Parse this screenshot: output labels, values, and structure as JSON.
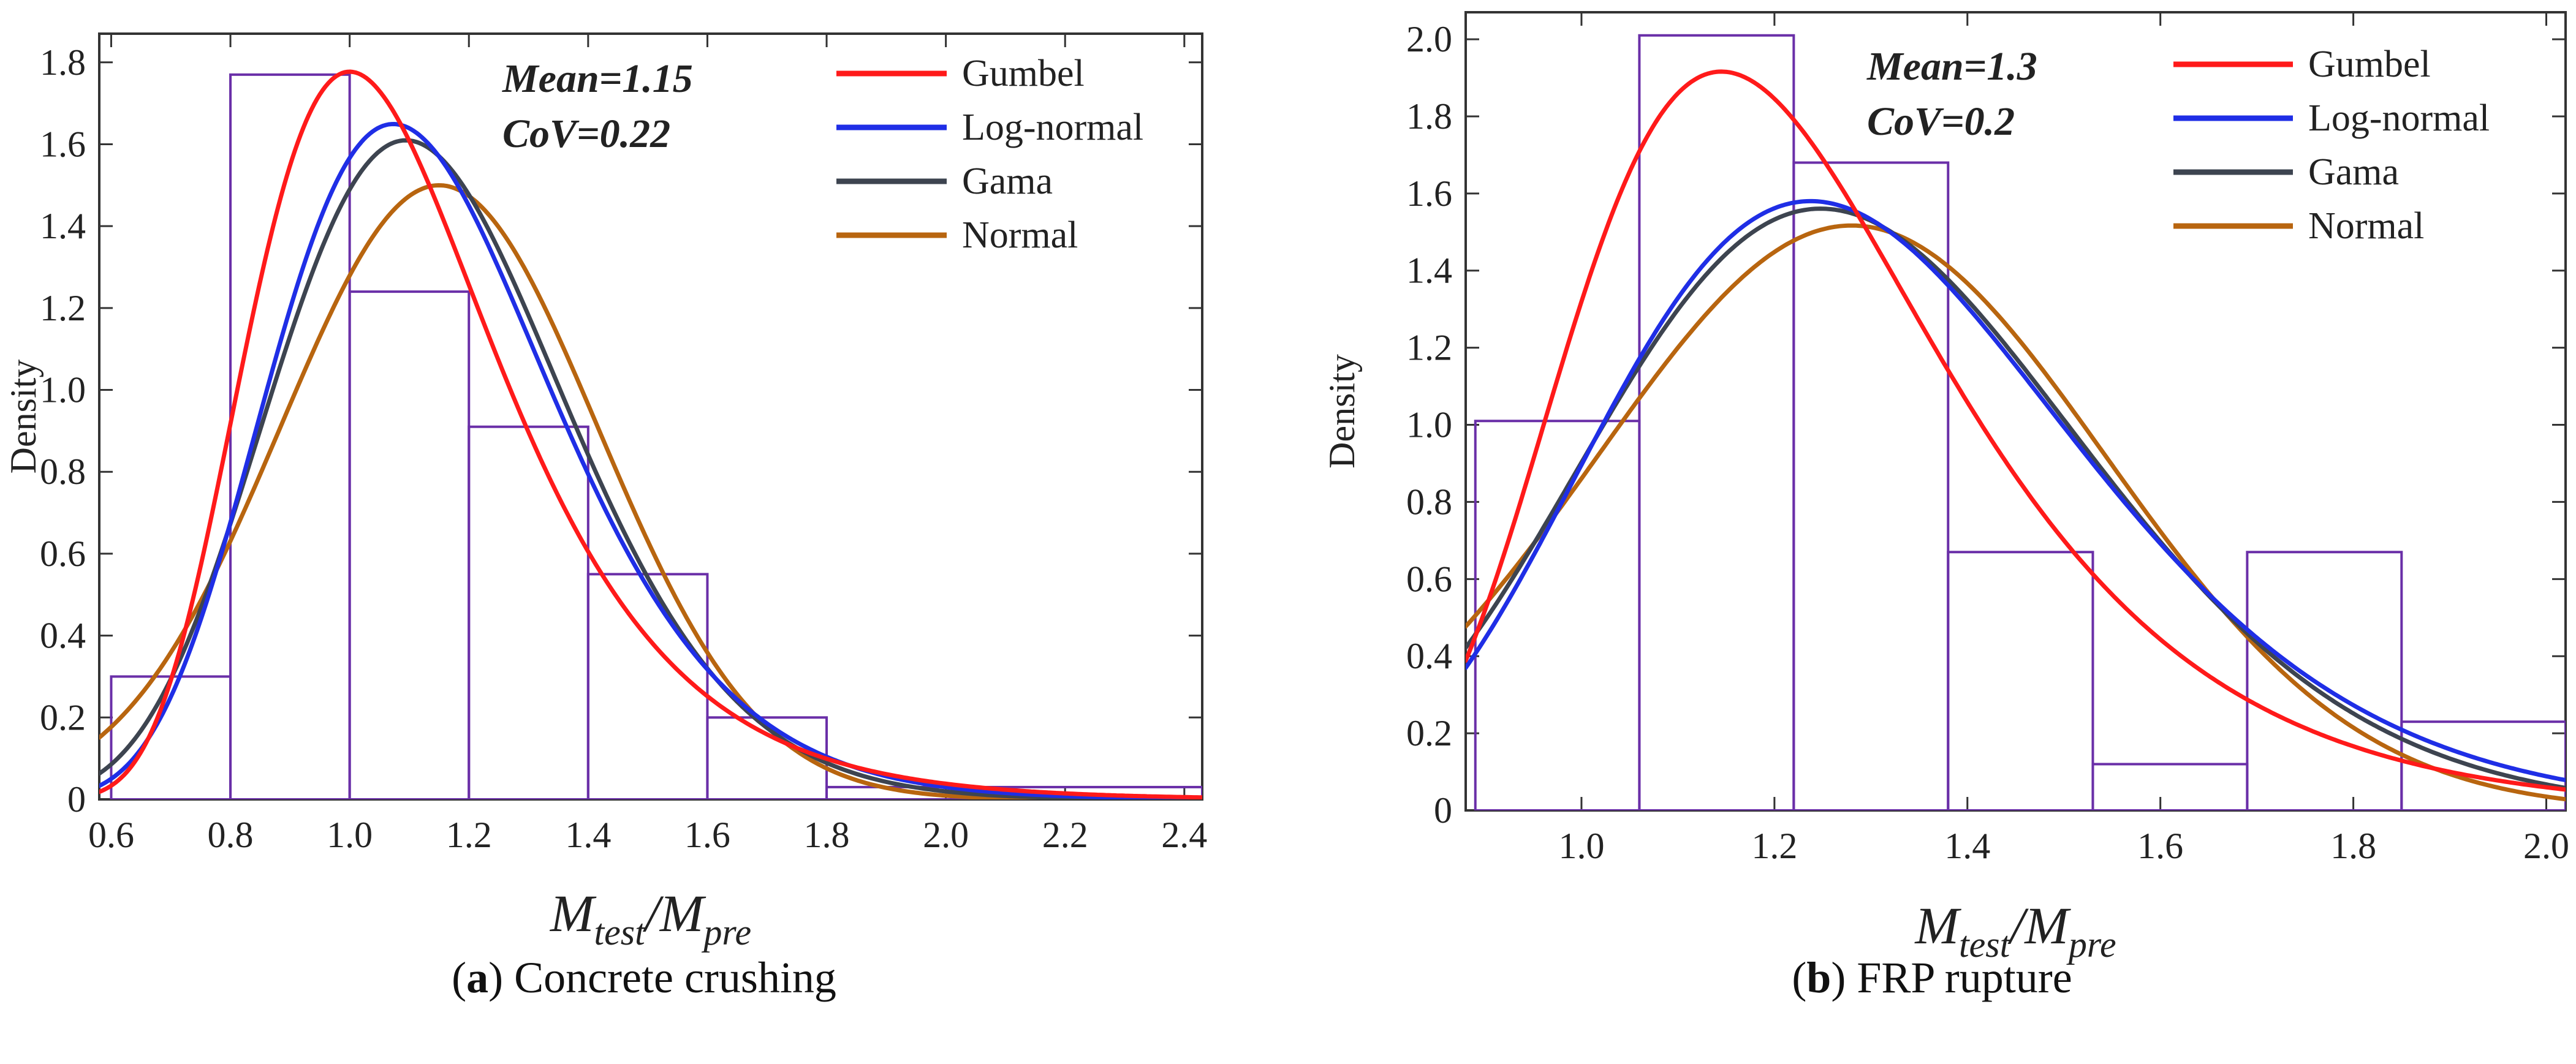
{
  "chart_data": [
    {
      "type": "histogram+line",
      "panel_label": "a",
      "caption": "Concrete crushing",
      "xlabel": "M_test/M_pre",
      "xlabel_main": "M",
      "xlabel_sub1": "test",
      "xlabel_slash": "/M",
      "xlabel_sub2": "pre",
      "ylabel": "Density",
      "xlim": [
        0.58,
        2.43
      ],
      "ylim": [
        0,
        1.87
      ],
      "xticks": [
        "0.6",
        "0.8",
        "1.0",
        "1.2",
        "1.4",
        "1.6",
        "1.8",
        "2.0",
        "2.2",
        "2.4"
      ],
      "xtick_values": [
        0.6,
        0.8,
        1.0,
        1.2,
        1.4,
        1.6,
        1.8,
        2.0,
        2.2,
        2.4
      ],
      "yticks": [
        "0",
        "0.2",
        "0.4",
        "0.6",
        "0.8",
        "1.0",
        "1.2",
        "1.4",
        "1.6",
        "1.8"
      ],
      "ytick_values": [
        0,
        0.2,
        0.4,
        0.6,
        0.8,
        1.0,
        1.2,
        1.4,
        1.6,
        1.8
      ],
      "annotation_mean": "Mean=1.15",
      "annotation_cov": "CoV=0.22",
      "histogram": {
        "bin_edges": [
          0.6,
          0.8,
          1.0,
          1.2,
          1.4,
          1.6,
          1.8,
          2.43
        ],
        "densities": [
          0.3,
          1.77,
          1.24,
          0.91,
          0.55,
          0.2,
          0.03
        ],
        "color": "#6a2fa8"
      },
      "series": [
        {
          "name": "Gumbel",
          "dist": "gumbel",
          "mode": 1.0,
          "beta": 0.207,
          "color": "#ff1a1a"
        },
        {
          "name": "Log-normal",
          "dist": "lognormal",
          "mu": 0.119,
          "sigma": 0.22,
          "color": "#1f2ee6"
        },
        {
          "name": "Gama",
          "dist": "gamma",
          "mean": 1.15,
          "cov": 0.22,
          "color": "#3d4450"
        },
        {
          "name": "Normal",
          "dist": "normal",
          "mean": 1.15,
          "sd": 0.266,
          "color": "#b8650f"
        }
      ]
    },
    {
      "type": "histogram+line",
      "panel_label": "b",
      "caption": "FRP rupture",
      "xlabel": "M_test/M_pre",
      "xlabel_main": "M",
      "xlabel_sub1": "test",
      "xlabel_slash": "/M",
      "xlabel_sub2": "pre",
      "ylabel": "Density",
      "xlim": [
        0.88,
        2.02
      ],
      "ylim": [
        0,
        2.07
      ],
      "xticks": [
        "1.0",
        "1.2",
        "1.4",
        "1.6",
        "1.8",
        "2.0"
      ],
      "xtick_values": [
        1.0,
        1.2,
        1.4,
        1.6,
        1.8,
        2.0
      ],
      "yticks": [
        "0",
        "0.2",
        "0.4",
        "0.6",
        "0.8",
        "1.0",
        "1.2",
        "1.4",
        "1.6",
        "1.8",
        "2.0"
      ],
      "ytick_values": [
        0,
        0.2,
        0.4,
        0.6,
        0.8,
        1.0,
        1.2,
        1.4,
        1.6,
        1.8,
        2.0
      ],
      "annotation_mean": "Mean=1.3",
      "annotation_cov": "CoV=0.2",
      "histogram": {
        "bin_edges": [
          0.89,
          1.06,
          1.22,
          1.38,
          1.53,
          1.69,
          1.85,
          2.02
        ],
        "densities": [
          1.01,
          2.01,
          1.68,
          0.67,
          0.12,
          0.67,
          0.23
        ],
        "color": "#6a2fa8"
      },
      "series": [
        {
          "name": "Gumbel",
          "dist": "gumbel",
          "mode": 1.145,
          "beta": 0.192,
          "color": "#ff1a1a"
        },
        {
          "name": "Log-normal",
          "dist": "lognormal",
          "mu": 0.253,
          "sigma": 0.2,
          "color": "#1f2ee6"
        },
        {
          "name": "Gama",
          "dist": "gamma",
          "mean": 1.3,
          "cov": 0.2,
          "color": "#3d4450"
        },
        {
          "name": "Normal",
          "dist": "normal",
          "mean": 1.28,
          "sd": 0.263,
          "color": "#b8650f"
        }
      ]
    }
  ]
}
